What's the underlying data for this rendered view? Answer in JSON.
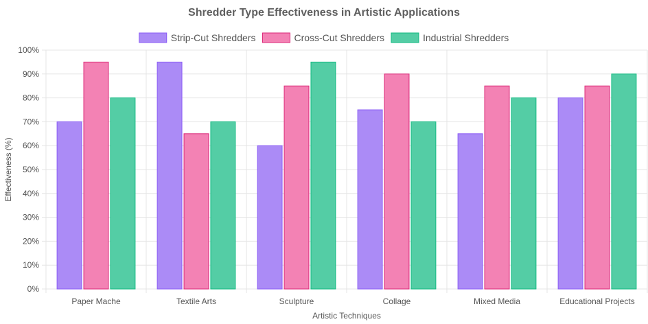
{
  "chart_data": {
    "type": "bar",
    "title": "Shredder Type Effectiveness in Artistic Applications",
    "xlabel": "Artistic Techniques",
    "ylabel": "Effectiveness (%)",
    "categories": [
      "Paper Mache",
      "Textile Arts",
      "Sculpture",
      "Collage",
      "Mixed Media",
      "Educational Projects"
    ],
    "series": [
      {
        "name": "Strip-Cut Shredders",
        "values": [
          70,
          95,
          60,
          75,
          65,
          80
        ],
        "color": "#ab8bf6",
        "border": "#8b5cf6"
      },
      {
        "name": "Cross-Cut Shredders",
        "values": [
          95,
          65,
          85,
          90,
          85,
          85
        ],
        "color": "#f382b4",
        "border": "#db2777"
      },
      {
        "name": "Industrial Shredders",
        "values": [
          80,
          70,
          95,
          70,
          80,
          90
        ],
        "color": "#54cda5",
        "border": "#10b981"
      }
    ],
    "ylim": [
      0,
      100
    ],
    "ytick_step": 10,
    "ytick_suffix": "%",
    "legend_position": "top",
    "grid": true
  }
}
